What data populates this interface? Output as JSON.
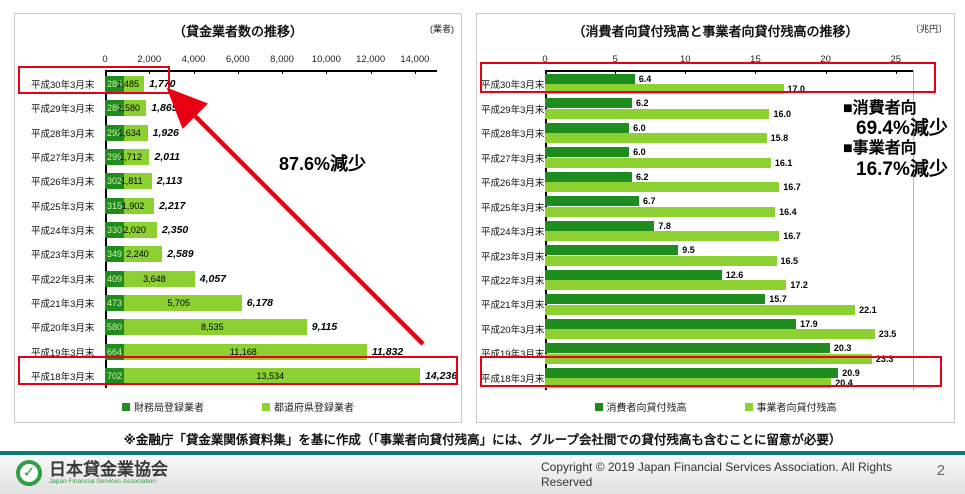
{
  "page": {
    "note": "※金融庁「貸金業関係資料集」を基に作成（「事業者向貸付残高」には、グループ会社間での貸付残高も含むことに留意が必要）",
    "copyright": "Copyright © 2019 Japan Financial Services Association. All Rights Reserved",
    "number": "2",
    "logo_title": "日本貸金業協会",
    "logo_subtitle": "Japan Financial Services Association",
    "logo_check": "✓"
  },
  "colors": {
    "dark_green": "#1f8c1f",
    "light_green": "#8cd032",
    "red": "#e60012",
    "teal": "#0b7d74",
    "logo_green": "#2f9e44"
  },
  "chart_data": [
    {
      "type": "bar",
      "orientation": "horizontal",
      "stacked": true,
      "title": "（貸金業者数の推移）",
      "unit": "(業者)",
      "xlabel": "",
      "ylabel": "",
      "xlim": [
        0,
        14000
      ],
      "plot_max": 15000,
      "grid": false,
      "legend_position": "bottom",
      "ticks": [
        {
          "label": "0",
          "v": 0
        },
        {
          "label": "2,000",
          "v": 2000
        },
        {
          "label": "4,000",
          "v": 4000
        },
        {
          "label": "6,000",
          "v": 6000
        },
        {
          "label": "8,000",
          "v": 8000
        },
        {
          "label": "10,000",
          "v": 10000
        },
        {
          "label": "12,000",
          "v": 12000
        },
        {
          "label": "14,000",
          "v": 14000
        }
      ],
      "categories": [
        "平成30年3月末",
        "平成29年3月末",
        "平成28年3月末",
        "平成27年3月末",
        "平成26年3月末",
        "平成25年3月末",
        "平成24年3月末",
        "平成23年3月末",
        "平成22年3月末",
        "平成21年3月末",
        "平成20年3月末",
        "平成19年3月末",
        "平成18年3月末"
      ],
      "series": [
        {
          "name": "財務局登録業者",
          "color": "#1f8c1f",
          "values": [
            285,
            285,
            292,
            299,
            302,
            315,
            330,
            349,
            409,
            473,
            580,
            664,
            702
          ],
          "labels": [
            "285",
            "285",
            "292",
            "299",
            "302",
            "315",
            "330",
            "349",
            "409",
            "473",
            "580",
            "664",
            "702"
          ]
        },
        {
          "name": "都道府県登録業者",
          "color": "#8cd032",
          "values": [
            1485,
            1580,
            1634,
            1712,
            1811,
            1902,
            2020,
            2240,
            3648,
            5705,
            8535,
            11168,
            13534
          ],
          "labels": [
            "1,485",
            "1,580",
            "1,634",
            "1,712",
            "1,811",
            "1,902",
            "2,020",
            "2,240",
            "3,648",
            "5,705",
            "8,535",
            "11,168",
            "13,534"
          ]
        }
      ],
      "totals": [
        "1,770",
        "1,865",
        "1,926",
        "2,011",
        "2,113",
        "2,217",
        "2,350",
        "2,589",
        "4,057",
        "6,178",
        "9,115",
        "11,832",
        "14,236"
      ],
      "annotation": "87.6%減少",
      "highlighted_rows": [
        0,
        12
      ]
    },
    {
      "type": "bar",
      "orientation": "horizontal",
      "grouped": true,
      "title": "（消費者向貸付残高と事業者向貸付残高の推移）",
      "unit": "〔兆円〕",
      "xlabel": "",
      "ylabel": "",
      "xlim": [
        0,
        25
      ],
      "plot_max": 26.3,
      "grid": false,
      "legend_position": "bottom",
      "ticks": [
        {
          "label": "0",
          "v": 0
        },
        {
          "label": "5",
          "v": 5
        },
        {
          "label": "10",
          "v": 10
        },
        {
          "label": "15",
          "v": 15
        },
        {
          "label": "20",
          "v": 20
        },
        {
          "label": "25",
          "v": 25
        }
      ],
      "categories": [
        "平成30年3月末",
        "平成29年3月末",
        "平成28年3月末",
        "平成27年3月末",
        "平成26年3月末",
        "平成25年3月末",
        "平成24年3月末",
        "平成23年3月末",
        "平成22年3月末",
        "平成21年3月末",
        "平成20年3月末",
        "平成19年3月末",
        "平成18年3月末"
      ],
      "series": [
        {
          "name": "消費者向貸付残高",
          "color": "#1f8c1f",
          "values": [
            6.4,
            6.2,
            6.0,
            6.0,
            6.2,
            6.7,
            7.8,
            9.5,
            12.6,
            15.7,
            17.9,
            20.3,
            20.9
          ],
          "labels": [
            "6.4",
            "6.2",
            "6.0",
            "6.0",
            "6.2",
            "6.7",
            "7.8",
            "9.5",
            "12.6",
            "15.7",
            "17.9",
            "20.3",
            "20.9"
          ]
        },
        {
          "name": "事業者向貸付残高",
          "color": "#8cd032",
          "values": [
            17.0,
            16.0,
            15.8,
            16.1,
            16.7,
            16.4,
            16.7,
            16.5,
            17.2,
            22.1,
            23.5,
            23.3,
            20.4
          ],
          "labels": [
            "17.0",
            "16.0",
            "15.8",
            "16.1",
            "16.7",
            "16.4",
            "16.7",
            "16.5",
            "17.2",
            "22.1",
            "23.5",
            "23.3",
            "20.4"
          ]
        }
      ],
      "annotations": [
        "■消費者向",
        "69.4%減少",
        "■事業者向",
        "16.7%減少"
      ],
      "highlighted_rows": [
        0,
        12
      ]
    }
  ]
}
